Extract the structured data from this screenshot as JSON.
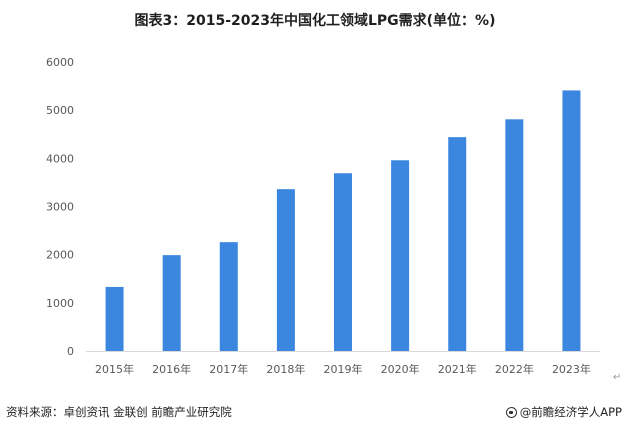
{
  "chart_data": {
    "type": "bar",
    "title": "图表3：2015-2023年中国化工领域LPG需求(单位：%)",
    "categories": [
      "2015年",
      "2016年",
      "2017年",
      "2018年",
      "2019年",
      "2020年",
      "2021年",
      "2022年",
      "2023年"
    ],
    "values": [
      1330,
      1990,
      2260,
      3360,
      3690,
      3960,
      4440,
      4810,
      5410
    ],
    "ylim": [
      0,
      6000
    ],
    "yticks": [
      0,
      1000,
      2000,
      3000,
      4000,
      5000,
      6000
    ],
    "bar_color": "#3b87e0",
    "grid": false,
    "legend": "none"
  },
  "footer": {
    "source": "资料来源：卓创资讯 金联创 前瞻产业研究院",
    "brand": "@前瞻经济学人APP"
  },
  "para_mark": "↵"
}
